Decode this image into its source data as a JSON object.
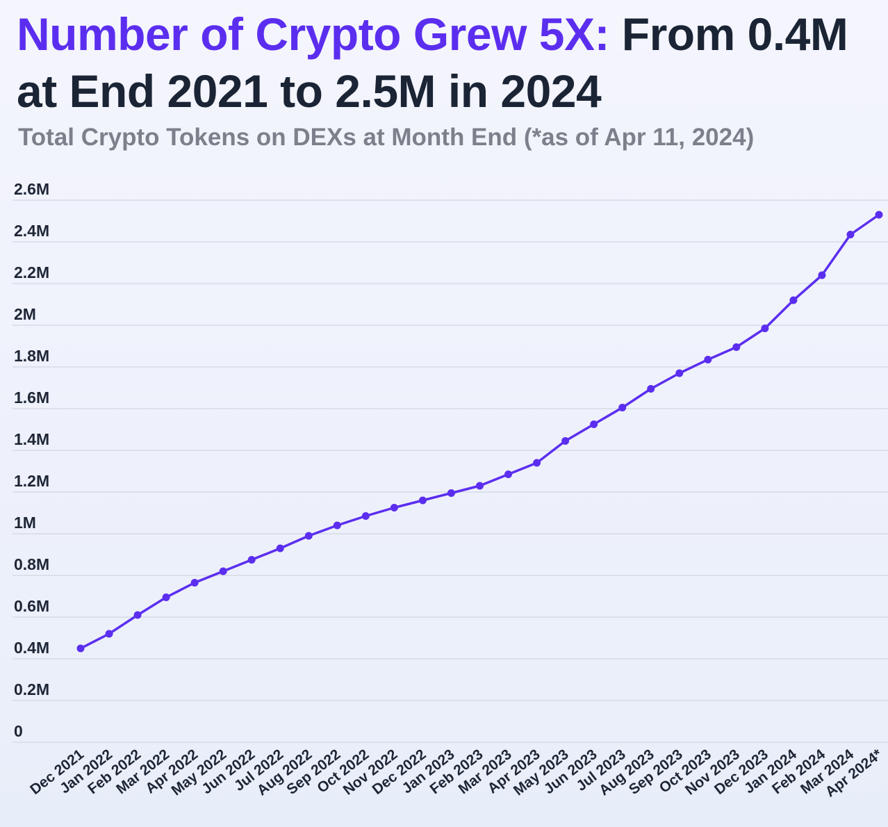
{
  "header": {
    "title_highlight": "Number of Crypto Grew 5X:",
    "title_rest": " From 0.4M at End 2021 to 2.5M in 2024",
    "subtitle": "Total Crypto Tokens on DEXs at Month End (*as of Apr 11, 2024)"
  },
  "colors": {
    "accent": "#5b2eef",
    "title_dark": "#1a2434",
    "subtitle_gray": "#7d808a",
    "grid": "#d6dbe6"
  },
  "chart_data": {
    "type": "line",
    "title": "Number of Crypto Grew 5X: From 0.4M at End 2021 to 2.5M in 2024",
    "subtitle": "Total Crypto Tokens on DEXs at Month End (*as of Apr 11, 2024)",
    "xlabel": "",
    "ylabel": "",
    "ylim": [
      0,
      2600000
    ],
    "grid": true,
    "legend": "none",
    "y_ticks": [
      {
        "value": 0,
        "label": "0"
      },
      {
        "value": 200000,
        "label": "0.2M"
      },
      {
        "value": 400000,
        "label": "0.4M"
      },
      {
        "value": 600000,
        "label": "0.6M"
      },
      {
        "value": 800000,
        "label": "0.8M"
      },
      {
        "value": 1000000,
        "label": "1M"
      },
      {
        "value": 1200000,
        "label": "1.2M"
      },
      {
        "value": 1400000,
        "label": "1.4M"
      },
      {
        "value": 1600000,
        "label": "1.6M"
      },
      {
        "value": 1800000,
        "label": "1.8M"
      },
      {
        "value": 2000000,
        "label": "2M"
      },
      {
        "value": 2200000,
        "label": "2.2M"
      },
      {
        "value": 2400000,
        "label": "2.4M"
      },
      {
        "value": 2600000,
        "label": "2.6M"
      }
    ],
    "categories": [
      "Dec 2021",
      "Jan 2022",
      "Feb 2022",
      "Mar 2022",
      "Apr 2022",
      "May 2022",
      "Jun 2022",
      "Jul 2022",
      "Aug 2022",
      "Sep 2022",
      "Oct 2022",
      "Nov 2022",
      "Dec 2022",
      "Jan 2023",
      "Feb 2023",
      "Mar 2023",
      "Apr 2023",
      "May 2023",
      "Jun 2023",
      "Jul 2023",
      "Aug 2023",
      "Sep 2023",
      "Oct 2023",
      "Nov 2023",
      "Dec 2023",
      "Jan 2024",
      "Feb 2024",
      "Mar 2024",
      "Apr 2024*"
    ],
    "series": [
      {
        "color": "#5b2eef",
        "values": [
          450000,
          520000,
          610000,
          695000,
          765000,
          820000,
          875000,
          930000,
          990000,
          1040000,
          1085000,
          1125000,
          1160000,
          1195000,
          1230000,
          1285000,
          1340000,
          1445000,
          1525000,
          1605000,
          1695000,
          1770000,
          1835000,
          1895000,
          1985000,
          2120000,
          2240000,
          2435000,
          2530000
        ]
      }
    ]
  }
}
